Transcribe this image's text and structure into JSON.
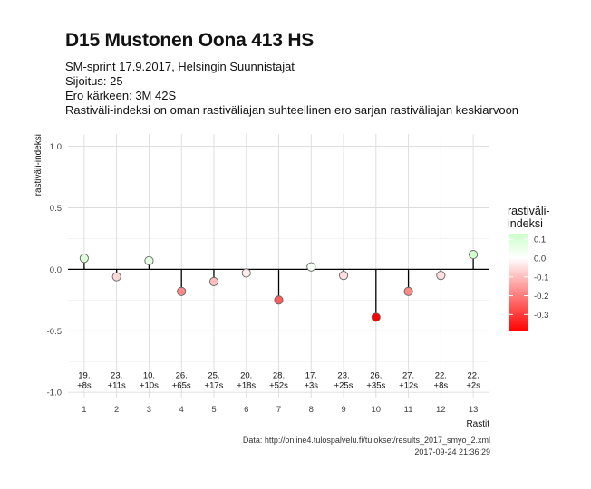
{
  "header": {
    "title": "D15 Mustonen Oona 413 HS",
    "lines": [
      "SM-sprint 17.9.2017, Helsingin Suunnistajat",
      "Sijoitus: 25",
      "Ero kärkeen: 3M 42S",
      "Rastiväli-indeksi on oman rastiväliajan suhteellinen ero sarjan rastiväliajan keskiarvoon"
    ]
  },
  "caption": {
    "source": "Data: http://online4.tulospalvelu.fi/tulokset/results_2017_smyo_2.xml",
    "timestamp": "2017-09-24 21:36:29"
  },
  "chart_data": {
    "type": "scatter",
    "style": "lollipop",
    "xlabel": "Rastit",
    "ylabel": "rastiväli-indeksi",
    "x": [
      1,
      2,
      3,
      4,
      5,
      6,
      7,
      8,
      9,
      10,
      11,
      12,
      13
    ],
    "xlim": [
      0.5,
      13.5
    ],
    "ylim": [
      -1.05,
      1.1
    ],
    "yticks": [
      -1.0,
      -0.5,
      0.0,
      0.5,
      1.0
    ],
    "ytick_labels": [
      "-1.0",
      "-0.5",
      "0.0",
      "0.5",
      "1.0"
    ],
    "values": [
      0.09,
      -0.06,
      0.07,
      -0.18,
      -0.1,
      -0.03,
      -0.25,
      0.02,
      -0.05,
      -0.39,
      -0.18,
      -0.05,
      0.12
    ],
    "annotations": [
      {
        "rank": "19.",
        "diff": "+8s"
      },
      {
        "rank": "23.",
        "diff": "+11s"
      },
      {
        "rank": "10.",
        "diff": "+10s"
      },
      {
        "rank": "26.",
        "diff": "+65s"
      },
      {
        "rank": "25.",
        "diff": "+17s"
      },
      {
        "rank": "20.",
        "diff": "+18s"
      },
      {
        "rank": "28.",
        "diff": "+52s"
      },
      {
        "rank": "17.",
        "diff": "+3s"
      },
      {
        "rank": "23.",
        "diff": "+25s"
      },
      {
        "rank": "26.",
        "diff": "+35s"
      },
      {
        "rank": "27.",
        "diff": "+12s"
      },
      {
        "rank": "22.",
        "diff": "+8s"
      },
      {
        "rank": "22.",
        "diff": "+2s"
      }
    ],
    "annotation_y": -0.9,
    "grid": true,
    "legend": {
      "title_lines": [
        "rastiväli-",
        "indeksi"
      ],
      "position": "right",
      "ticks": [
        0.1,
        0.0,
        -0.1,
        -0.2,
        -0.3
      ],
      "tick_labels": [
        "0.1",
        "0.0",
        "-0.1",
        "-0.2",
        "-0.3"
      ],
      "range": [
        -0.39,
        0.13
      ]
    },
    "colors": {
      "low": "#ff0000",
      "mid": "#ffffff",
      "high": "#ccffcc",
      "grid": "#dcdcdc",
      "panel": "#ffffff"
    }
  }
}
